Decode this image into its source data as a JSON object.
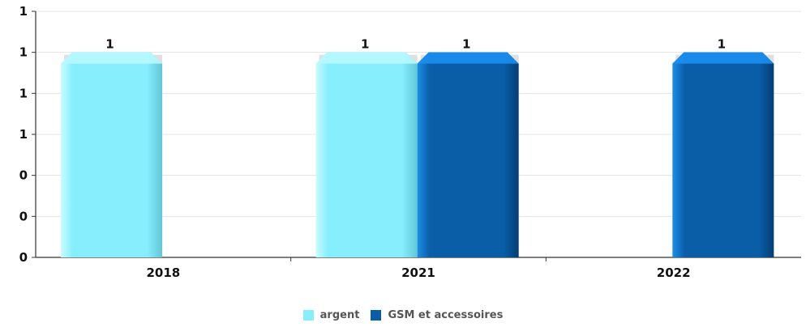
{
  "chart_data": {
    "type": "bar",
    "categories": [
      "2018",
      "2021",
      "2022"
    ],
    "series": [
      {
        "name": "argent",
        "values": [
          1,
          1,
          null
        ],
        "color": "#86eefc"
      },
      {
        "name": "GSM et accessoires",
        "values": [
          null,
          1,
          1
        ],
        "color": "#0a5ea8"
      }
    ],
    "y_tick_labels": [
      "0",
      "0",
      "0",
      "1",
      "1",
      "1",
      "1"
    ],
    "ylim": [
      0,
      1.2
    ],
    "grid": true,
    "legend_position": "bottom-center"
  }
}
